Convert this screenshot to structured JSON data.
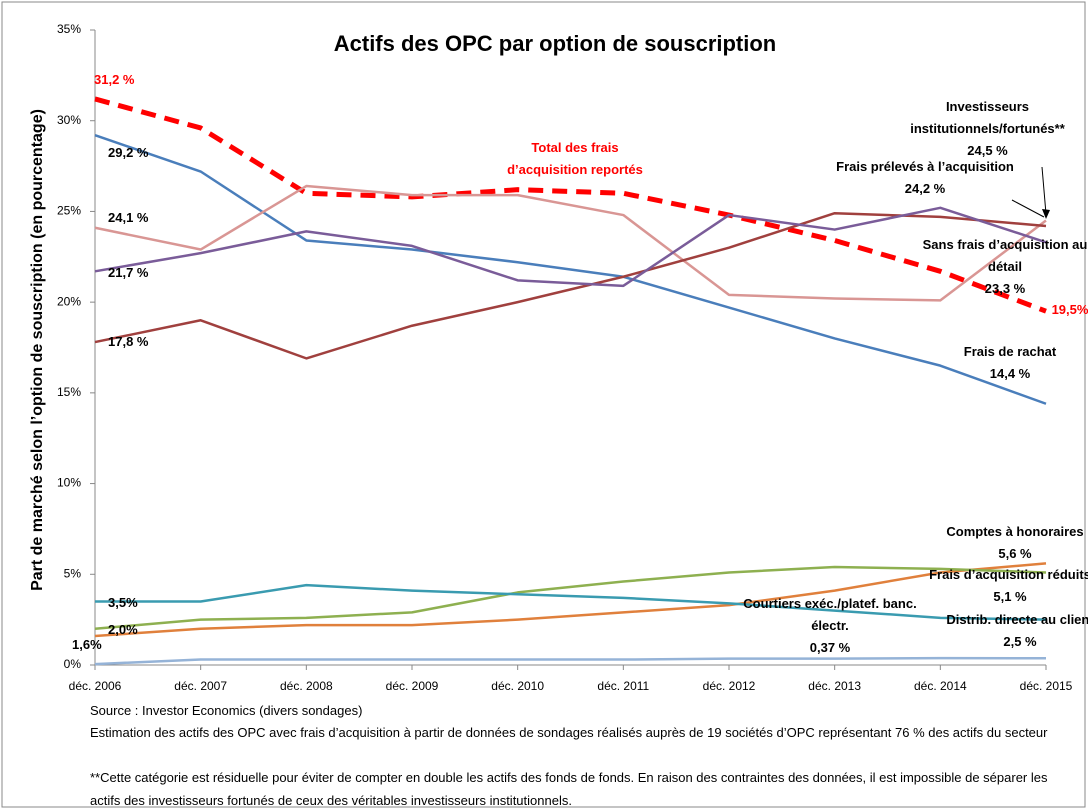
{
  "chart_data": {
    "type": "line",
    "title": "Actifs des OPC par option de souscription",
    "y_axis_label": "Part de marché selon l’option de souscription (en pourcentage)",
    "categories": [
      "déc. 2006",
      "déc. 2007",
      "déc. 2008",
      "déc. 2009",
      "déc. 2010",
      "déc. 2011",
      "déc. 2012",
      "déc. 2013",
      "déc. 2014",
      "déc. 2015"
    ],
    "ylim": [
      0,
      35
    ],
    "yticks": [
      {
        "value": 0,
        "label": "0%"
      },
      {
        "value": 5,
        "label": "5%"
      },
      {
        "value": 10,
        "label": "10%"
      },
      {
        "value": 15,
        "label": "15%"
      },
      {
        "value": 20,
        "label": "20%"
      },
      {
        "value": 25,
        "label": "25%"
      },
      {
        "value": 30,
        "label": "30%"
      },
      {
        "value": 35,
        "label": "35%"
      }
    ],
    "series": [
      {
        "name": "Frais de rachat",
        "color": "#4a7ebb",
        "values": [
          29.2,
          27.2,
          23.4,
          22.9,
          22.2,
          21.4,
          19.7,
          18.0,
          16.5,
          14.4
        ],
        "value_labels": [
          "29,2 %",
          null,
          null,
          null,
          null,
          null,
          null,
          null,
          null,
          "14,4 %"
        ]
      },
      {
        "name": "Total des frais d’acquisition reportés",
        "color": "#ff0000",
        "dashed": true,
        "values": [
          31.2,
          29.6,
          26.0,
          25.8,
          26.2,
          26.0,
          24.8,
          23.4,
          21.7,
          19.5
        ],
        "value_labels": [
          "31,2 %",
          null,
          null,
          null,
          null,
          null,
          null,
          null,
          null,
          "19,5%"
        ]
      },
      {
        "name": "Investisseurs institutionnels/fortunés**",
        "color": "#d99694",
        "values": [
          24.1,
          22.9,
          26.4,
          25.9,
          25.9,
          24.8,
          20.4,
          20.2,
          20.1,
          24.5
        ],
        "value_labels": [
          "24,1 %",
          null,
          null,
          null,
          null,
          null,
          null,
          null,
          null,
          "24,5 %"
        ]
      },
      {
        "name": "Frais prélevés à l’acquisition",
        "color": "#a0403e",
        "values": [
          17.8,
          19.0,
          16.9,
          18.7,
          20.0,
          21.4,
          23.0,
          24.9,
          24.7,
          24.2
        ],
        "value_labels": [
          "17,8 %",
          null,
          null,
          null,
          null,
          null,
          null,
          null,
          null,
          "24,2 %"
        ]
      },
      {
        "name": "Sans frais d’acquisition au détail",
        "color": "#7a5c99",
        "values": [
          21.7,
          22.7,
          23.9,
          23.1,
          21.2,
          20.9,
          24.8,
          24.0,
          25.2,
          23.3
        ],
        "value_labels": [
          "21,7 %",
          null,
          null,
          null,
          null,
          null,
          null,
          null,
          null,
          "23,3 %"
        ]
      },
      {
        "name": "Comptes à honoraires",
        "color": "#e0803c",
        "values": [
          1.6,
          2.0,
          2.2,
          2.2,
          2.5,
          2.9,
          3.3,
          4.1,
          5.1,
          5.6
        ],
        "value_labels": [
          "1,6%",
          null,
          null,
          null,
          null,
          null,
          null,
          null,
          null,
          "5,6 %"
        ]
      },
      {
        "name": "Frais d’acquisition réduits",
        "color": "#8eb050",
        "values": [
          2.0,
          2.5,
          2.6,
          2.9,
          4.0,
          4.6,
          5.1,
          5.4,
          5.3,
          5.1
        ],
        "value_labels": [
          "2,0%",
          null,
          null,
          null,
          null,
          null,
          null,
          null,
          null,
          "5,1 %"
        ]
      },
      {
        "name": "Distrib. directe au client",
        "color": "#3a9bb0",
        "values": [
          3.5,
          3.5,
          4.4,
          4.1,
          3.9,
          3.7,
          3.4,
          3.0,
          2.6,
          2.5
        ],
        "value_labels": [
          "3,5%",
          null,
          null,
          null,
          null,
          null,
          null,
          null,
          null,
          "2,5 %"
        ]
      },
      {
        "name": "Courtiers exéc./platef. banc. électr.",
        "color": "#95b3d7",
        "values": [
          0.05,
          0.3,
          0.3,
          0.3,
          0.3,
          0.3,
          0.35,
          0.35,
          0.38,
          0.37
        ],
        "value_labels": [
          null,
          null,
          null,
          null,
          null,
          null,
          null,
          null,
          null,
          "0,37 %"
        ]
      }
    ],
    "notes": [
      "Source : Investor Economics (divers sondages)",
      "Estimation des actifs des OPC avec frais d’acquisition à partir de données de sondages réalisés auprès de 19 sociétés d’OPC représentant 76 % des actifs du secteur",
      "**Cette catégorie est résiduelle pour éviter de compter en double les actifs des fonds de fonds. En raison des contraintes des données, il est impossible de séparer les actifs des investisseurs fortunés de ceux des véritables investisseurs institutionnels."
    ]
  }
}
